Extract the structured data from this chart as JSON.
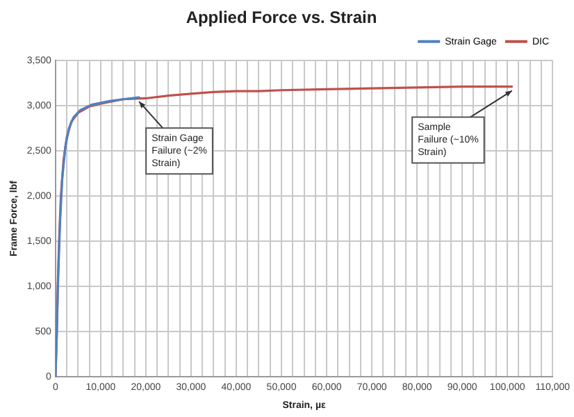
{
  "chart_data": {
    "type": "line",
    "title": "Applied Force vs. Strain",
    "xlabel": "Strain, µε",
    "ylabel": "Frame Force, lbf",
    "series": [
      {
        "name": "Strain Gage",
        "color": "#4f81bd",
        "x": [
          0,
          300,
          600,
          1000,
          1500,
          2200,
          3000,
          4000,
          5500,
          8000,
          12000,
          15000,
          18500
        ],
        "values": [
          0,
          500,
          1100,
          1700,
          2200,
          2550,
          2750,
          2870,
          2950,
          3010,
          3050,
          3070,
          3090
        ]
      },
      {
        "name": "DIC",
        "color": "#c0504d",
        "x": [
          0,
          250,
          500,
          800,
          1200,
          1800,
          2500,
          3500,
          5000,
          7500,
          10000,
          15000,
          20000,
          25000,
          30000,
          35000,
          40000,
          45000,
          50000,
          60000,
          70000,
          80000,
          90000,
          100000,
          101000
        ],
        "values": [
          0,
          400,
          1000,
          1500,
          2000,
          2400,
          2650,
          2820,
          2920,
          2990,
          3020,
          3070,
          3080,
          3110,
          3130,
          3150,
          3160,
          3160,
          3170,
          3180,
          3190,
          3200,
          3210,
          3210,
          3210
        ]
      }
    ],
    "xlim": [
      0,
      110000
    ],
    "xticks": [
      {
        "value": 0,
        "label": "0"
      },
      {
        "value": 2500,
        "label": null
      },
      {
        "value": 5000,
        "label": null
      },
      {
        "value": 7500,
        "label": null
      },
      {
        "value": 10000,
        "label": "10,000"
      },
      {
        "value": 12500,
        "label": null
      },
      {
        "value": 15000,
        "label": null
      },
      {
        "value": 17500,
        "label": null
      },
      {
        "value": 20000,
        "label": "20,000"
      },
      {
        "value": 22500,
        "label": null
      },
      {
        "value": 25000,
        "label": null
      },
      {
        "value": 27500,
        "label": null
      },
      {
        "value": 30000,
        "label": "30,000"
      },
      {
        "value": 32500,
        "label": null
      },
      {
        "value": 35000,
        "label": null
      },
      {
        "value": 37500,
        "label": null
      },
      {
        "value": 40000,
        "label": "40,000"
      },
      {
        "value": 42500,
        "label": null
      },
      {
        "value": 45000,
        "label": null
      },
      {
        "value": 47500,
        "label": null
      },
      {
        "value": 50000,
        "label": "50,000"
      },
      {
        "value": 52500,
        "label": null
      },
      {
        "value": 55000,
        "label": null
      },
      {
        "value": 57500,
        "label": null
      },
      {
        "value": 60000,
        "label": "60,000"
      },
      {
        "value": 62500,
        "label": null
      },
      {
        "value": 65000,
        "label": null
      },
      {
        "value": 67500,
        "label": null
      },
      {
        "value": 70000,
        "label": "70,000"
      },
      {
        "value": 72500,
        "label": null
      },
      {
        "value": 75000,
        "label": null
      },
      {
        "value": 77500,
        "label": null
      },
      {
        "value": 80000,
        "label": "80,000"
      },
      {
        "value": 82500,
        "label": null
      },
      {
        "value": 85000,
        "label": null
      },
      {
        "value": 87500,
        "label": null
      },
      {
        "value": 90000,
        "label": "90,000"
      },
      {
        "value": 92500,
        "label": null
      },
      {
        "value": 95000,
        "label": null
      },
      {
        "value": 97500,
        "label": null
      },
      {
        "value": 100000,
        "label": "100,000"
      },
      {
        "value": 102500,
        "label": null
      },
      {
        "value": 105000,
        "label": null
      },
      {
        "value": 107500,
        "label": null
      },
      {
        "value": 110000,
        "label": "110,000"
      }
    ],
    "ylim": [
      0,
      3500
    ],
    "yticks": [
      {
        "value": 0,
        "label": "0"
      },
      {
        "value": 500,
        "label": "500"
      },
      {
        "value": 1000,
        "label": "1,000"
      },
      {
        "value": 1500,
        "label": "1,500"
      },
      {
        "value": 2000,
        "label": "2,000"
      },
      {
        "value": 2500,
        "label": "2,500"
      },
      {
        "value": 3000,
        "label": "3,000"
      },
      {
        "value": 3500,
        "label": "3,500"
      }
    ],
    "annotations": [
      {
        "text": "Strain Gage Failure (~2% Strain)",
        "x": 18500,
        "y": 3090
      },
      {
        "text": "Sample Failure (~10% Strain)",
        "x": 101000,
        "y": 3210
      }
    ],
    "grid": true,
    "legend": "top right",
    "marker": "none",
    "line_style": "solid"
  }
}
